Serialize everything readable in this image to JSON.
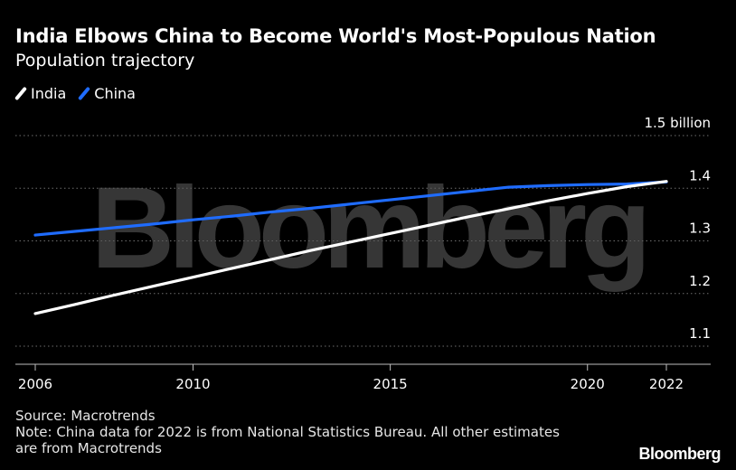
{
  "header": {
    "title": "India Elbows China to Become World's Most-Populous Nation",
    "subtitle": "Population trajectory"
  },
  "watermark": "Bloomberg",
  "footer": {
    "source": "Source: Macrotrends",
    "note_line1": "Note: China data for 2022 is from National Statistics Bureau. All other estimates",
    "note_line2": "are from Macrotrends",
    "brand": "Bloomberg"
  },
  "colors": {
    "background": "#000000",
    "india": "#ffffff",
    "china": "#1f6cff",
    "grid": "#6e6e6e",
    "axis": "#bdbdbd"
  },
  "chart_data": {
    "type": "line",
    "title": "India Elbows China to Become World's Most-Populous Nation",
    "subtitle": "Population trajectory",
    "xlabel": "",
    "ylabel": "",
    "x": [
      2006,
      2007,
      2008,
      2009,
      2010,
      2011,
      2012,
      2013,
      2014,
      2015,
      2016,
      2017,
      2018,
      2019,
      2020,
      2021,
      2022
    ],
    "x_ticks": [
      2006,
      2010,
      2015,
      2020,
      2022
    ],
    "x_tick_labels": [
      "2006",
      "2010",
      "2015",
      "2020",
      "2022"
    ],
    "xlim": [
      2006,
      2022
    ],
    "y_ticks": [
      1.1,
      1.2,
      1.3,
      1.4,
      1.5
    ],
    "y_tick_labels": [
      "1.1",
      "1.2",
      "1.3",
      "1.4",
      "1.5 billion"
    ],
    "ylim": [
      1.07,
      1.5
    ],
    "grid": "horizontal dotted",
    "legend": "top-left",
    "series": [
      {
        "name": "India",
        "color": "#ffffff",
        "values": [
          1.162,
          1.179,
          1.197,
          1.214,
          1.231,
          1.248,
          1.265,
          1.282,
          1.298,
          1.314,
          1.33,
          1.346,
          1.361,
          1.376,
          1.39,
          1.403,
          1.413
        ]
      },
      {
        "name": "China",
        "color": "#1f6cff",
        "values": [
          1.311,
          1.318,
          1.325,
          1.332,
          1.34,
          1.347,
          1.355,
          1.362,
          1.37,
          1.378,
          1.386,
          1.394,
          1.402,
          1.405,
          1.407,
          1.408,
          1.412
        ]
      }
    ]
  }
}
